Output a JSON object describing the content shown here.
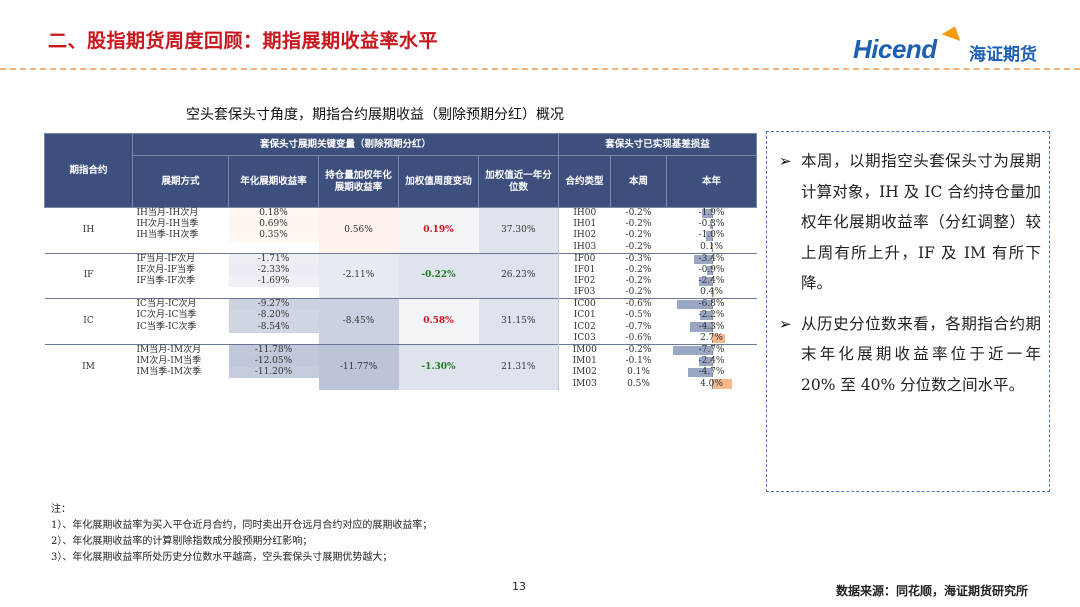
{
  "header": {
    "title": "二、股指期货周度回顾：期指展期收益率水平",
    "logo_en": "Hicend",
    "logo_cn": "海证期货"
  },
  "table": {
    "caption": "空头套保头寸角度，期指合约展期收益（剔除预期分红）概况",
    "group_headers": {
      "contract": "期指合约",
      "key_vars": "套保头寸展期关键变量（剔除预期分红）",
      "realized": "套保头寸已实现基差损益"
    },
    "col_headers": {
      "mode": "展期方式",
      "annual_rate": "年化展期收益率",
      "oi_weighted": "持仓量加权年化展期收益率",
      "weekly_change": "加权值周度变动",
      "percentile": "加权值近一年分位数",
      "contract_type": "合约类型",
      "this_week": "本周",
      "this_year": "本年"
    },
    "groups": [
      {
        "index": "IH",
        "weighted": "0.56%",
        "change": "0.19%",
        "change_sign": "up",
        "percentile": "37.30%",
        "rows": [
          {
            "mode": "IH当月-IH次月",
            "rate": "0.18%",
            "code": "IH00",
            "week": "-0.2%",
            "year": "-1.9%",
            "year_num": -1.9
          },
          {
            "mode": "IH次月-IH当季",
            "rate": "0.69%",
            "code": "IH01",
            "week": "-0.2%",
            "year": "-0.3%",
            "year_num": -0.3
          },
          {
            "mode": "IH当季-IH次季",
            "rate": "0.35%",
            "code": "IH02",
            "week": "-0.2%",
            "year": "-1.0%",
            "year_num": -1.0
          },
          {
            "mode": "",
            "rate": "",
            "code": "IH03",
            "week": "-0.2%",
            "year": "0.1%",
            "year_num": 0.1
          }
        ]
      },
      {
        "index": "IF",
        "weighted": "-2.11%",
        "change": "-0.22%",
        "change_sign": "down",
        "percentile": "26.23%",
        "rows": [
          {
            "mode": "IF当月-IF次月",
            "rate": "-1.71%",
            "code": "IF00",
            "week": "-0.3%",
            "year": "-3.4%",
            "year_num": -3.4
          },
          {
            "mode": "IF次月-IF当季",
            "rate": "-2.33%",
            "code": "IF01",
            "week": "-0.2%",
            "year": "-0.9%",
            "year_num": -0.9
          },
          {
            "mode": "IF当季-IF次季",
            "rate": "-1.69%",
            "code": "IF02",
            "week": "-0.2%",
            "year": "-2.4%",
            "year_num": -2.4
          },
          {
            "mode": "",
            "rate": "",
            "code": "IF03",
            "week": "-0.2%",
            "year": "0.4%",
            "year_num": 0.4
          }
        ]
      },
      {
        "index": "IC",
        "weighted": "-8.45%",
        "change": "0.58%",
        "change_sign": "up",
        "percentile": "31.15%",
        "rows": [
          {
            "mode": "IC当月-IC次月",
            "rate": "-9.27%",
            "code": "IC00",
            "week": "-0.6%",
            "year": "-6.8%",
            "year_num": -6.8
          },
          {
            "mode": "IC次月-IC当季",
            "rate": "-8.20%",
            "code": "IC01",
            "week": "-0.5%",
            "year": "-2.2%",
            "year_num": -2.2
          },
          {
            "mode": "IC当季-IC次季",
            "rate": "-8.54%",
            "code": "IC02",
            "week": "-0.7%",
            "year": "-4.3%",
            "year_num": -4.3
          },
          {
            "mode": "",
            "rate": "",
            "code": "IC03",
            "week": "-0.6%",
            "year": "2.7%",
            "year_num": 2.7
          }
        ]
      },
      {
        "index": "IM",
        "weighted": "-11.77%",
        "change": "-1.30%",
        "change_sign": "down",
        "percentile": "21.31%",
        "rows": [
          {
            "mode": "IM当月-IM次月",
            "rate": "-11.78%",
            "code": "IM00",
            "week": "-0.2%",
            "year": "-7.7%",
            "year_num": -7.7
          },
          {
            "mode": "IM次月-IM当季",
            "rate": "-12.05%",
            "code": "IM01",
            "week": "-0.1%",
            "year": "-2.4%",
            "year_num": -2.4
          },
          {
            "mode": "IM当季-IM次季",
            "rate": "-11.20%",
            "code": "IM02",
            "week": "0.1%",
            "year": "-4.7%",
            "year_num": -4.7
          },
          {
            "mode": "",
            "rate": "",
            "code": "IM03",
            "week": "0.5%",
            "year": "4.0%",
            "year_num": 4.0
          }
        ]
      }
    ]
  },
  "notes": [
    "注：",
    "1）、年化展期收益率为买入平仓近月合约，同时卖出开仓远月合约对应的展期收益率；",
    "2）、年化展期收益率的计算剔除指数成分股预期分红影响；",
    "3）、年化展期收益率所处历史分位数水平越高，空头套保头寸展期优势越大；"
  ],
  "commentary": [
    "本周，以期指空头套保头寸为展期计算对象，IH 及 IC 合约持仓量加权年化展期收益率（分红调整）较上周有所上升，IF 及 IM 有所下降。",
    "从历史分位数来看，各期指合约期末年化展期收益率位于近一年 20% 至 40% 分位数之间水平。"
  ],
  "footer": {
    "page": "13",
    "source": "数据来源：同花顺，海证期货研究所"
  },
  "colors": {
    "title_red": "#c8161d",
    "header_navy": "#3d4f7c",
    "positive_fill": "#f7b98c",
    "negative_fill": "#9aa7c4",
    "box_border": "#4a7cc2"
  }
}
